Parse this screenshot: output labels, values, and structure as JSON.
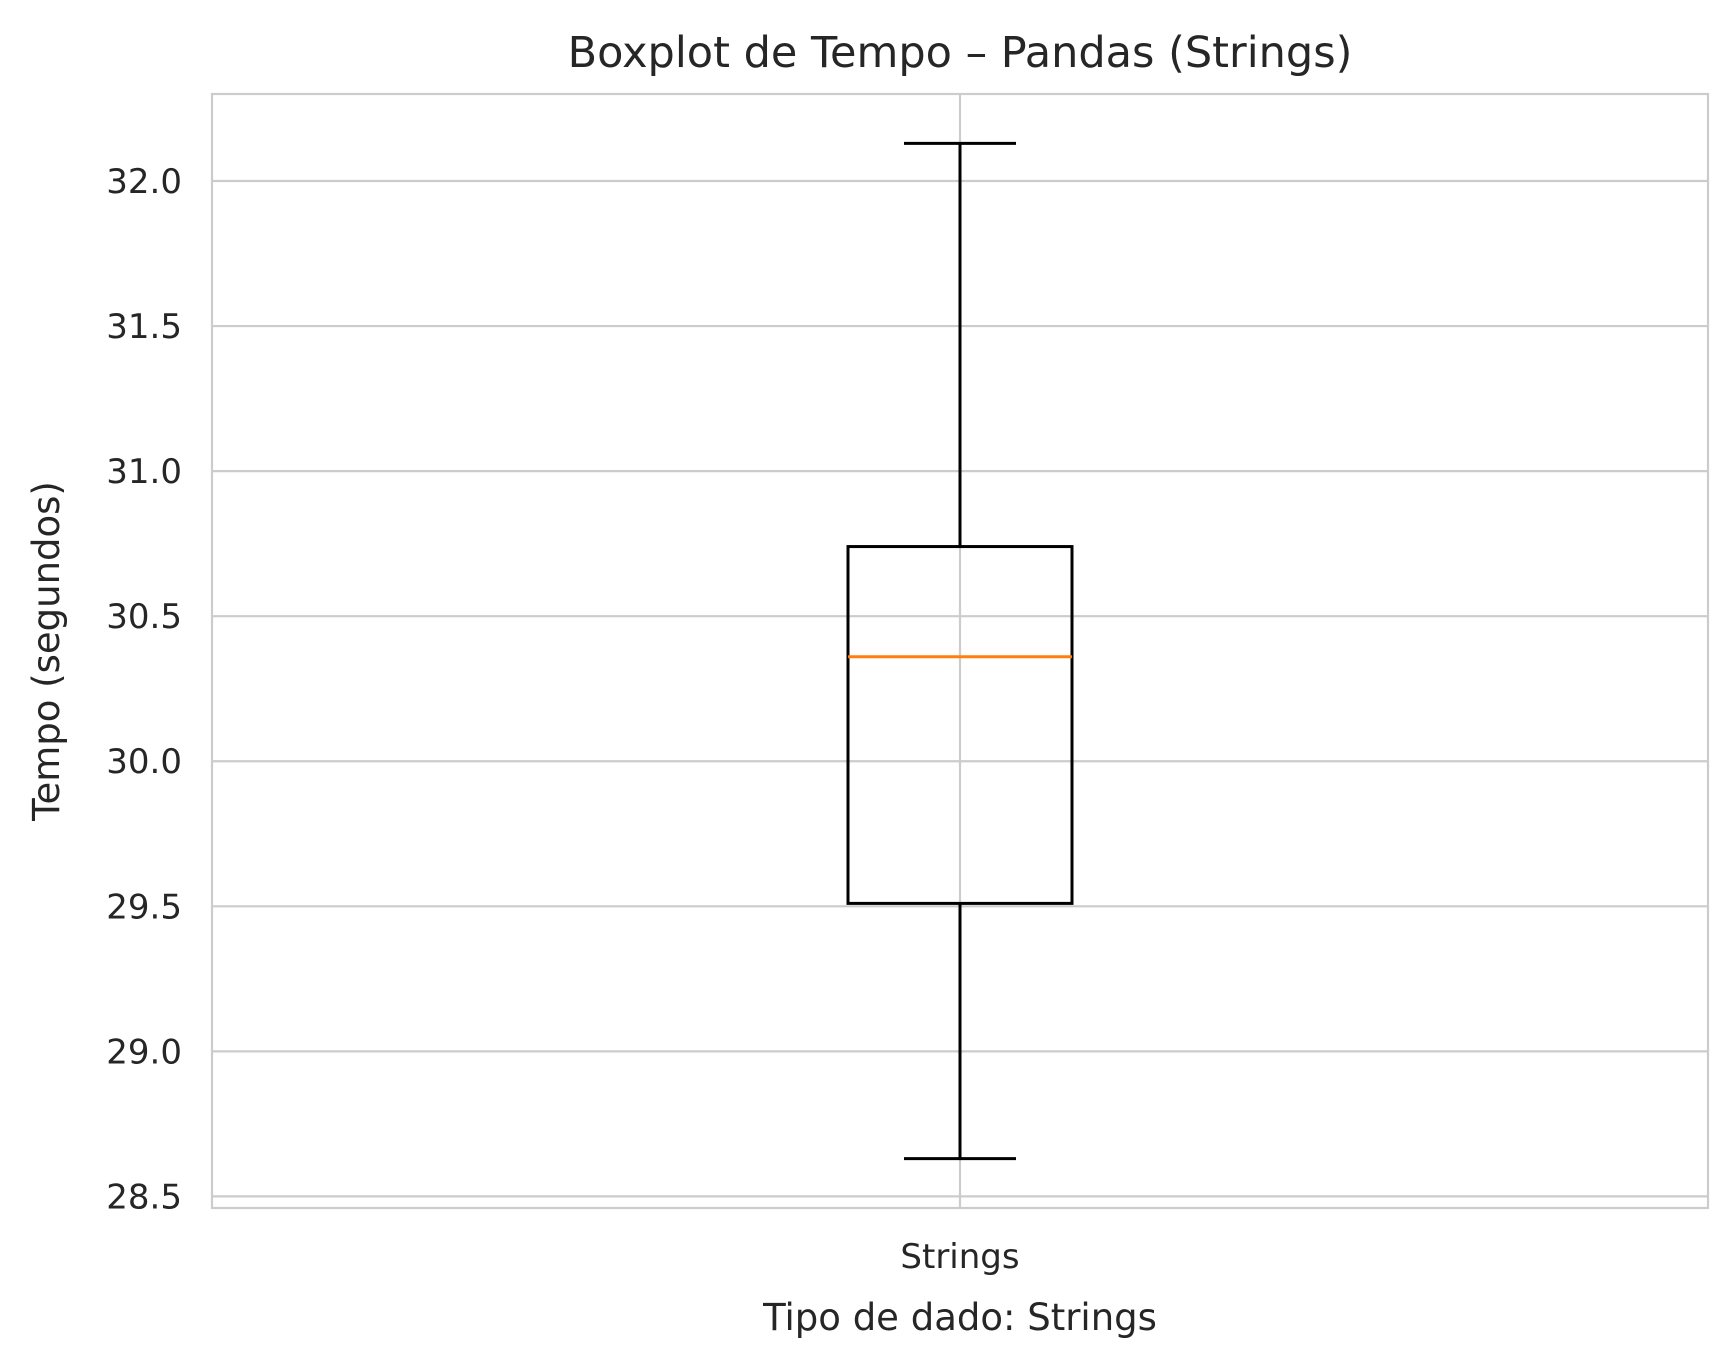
{
  "chart_data": {
    "type": "box",
    "title": "Boxplot de Tempo – Pandas (Strings)",
    "xlabel": "Tipo de dado: Strings",
    "ylabel": "Tempo (segundos)",
    "ylim": [
      28.46,
      32.3
    ],
    "yticks": [
      28.5,
      29.0,
      29.5,
      30.0,
      30.5,
      31.0,
      31.5,
      32.0
    ],
    "ytick_labels": [
      "28.5",
      "29.0",
      "29.5",
      "30.0",
      "30.5",
      "31.0",
      "31.5",
      "32.0"
    ],
    "grid": true,
    "categories": [
      "Strings"
    ],
    "boxes": [
      {
        "category": "Strings",
        "whisker_low": 28.63,
        "q1": 29.51,
        "median": 30.36,
        "q3": 30.74,
        "whisker_high": 32.13
      }
    ],
    "colors": {
      "box": "#000000",
      "median": "#ff7f0e",
      "grid": "#cccccc"
    }
  }
}
